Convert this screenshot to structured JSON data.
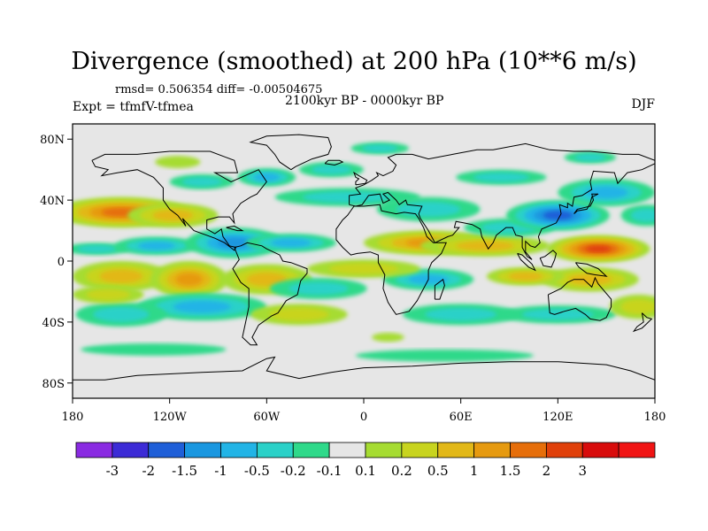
{
  "header": {
    "title": "Divergence (smoothed) at 200 hPa (10**6 m/s)",
    "rmsd_text": "rmsd= 0.506354 diff= -0.00504675",
    "expt_text": "Expt = tfmfV-tfmea",
    "period_text": "2100kyr BP - 0000kyr BP",
    "season_text": "DJF"
  },
  "map": {
    "projection": "cylindrical equidistant",
    "lon_range": [
      -180,
      180
    ],
    "lat_range": [
      -90,
      90
    ],
    "lat_ticks": [
      {
        "value": 80,
        "label": "80N"
      },
      {
        "value": 40,
        "label": "40N"
      },
      {
        "value": 0,
        "label": "0"
      },
      {
        "value": -40,
        "label": "40S"
      },
      {
        "value": -80,
        "label": "80S"
      }
    ],
    "lon_ticks": [
      {
        "value": -180,
        "label": "180"
      },
      {
        "value": -120,
        "label": "120W"
      },
      {
        "value": -60,
        "label": "60W"
      },
      {
        "value": 0,
        "label": "0"
      },
      {
        "value": 60,
        "label": "60E"
      },
      {
        "value": 120,
        "label": "120E"
      },
      {
        "value": 180,
        "label": "180"
      }
    ],
    "neutral_color": "#e6e6e6",
    "coast_color": "#000000"
  },
  "colorbar": {
    "colors": [
      "#8a2be2",
      "#3c2bd6",
      "#1f5fd8",
      "#1a97e0",
      "#22b4e6",
      "#2bd1c8",
      "#2fd98a",
      "#e6e6e6",
      "#a6dc32",
      "#c8d41e",
      "#e2b818",
      "#e69a10",
      "#e66e0a",
      "#e0400a",
      "#d80c0c",
      "#f01414"
    ],
    "labels": [
      "-3",
      "-2",
      "-1.5",
      "-1",
      "-0.5",
      "-0.2",
      "-0.1",
      "0.1",
      "0.2",
      "0.5",
      "1",
      "1.5",
      "2",
      "3"
    ]
  }
}
